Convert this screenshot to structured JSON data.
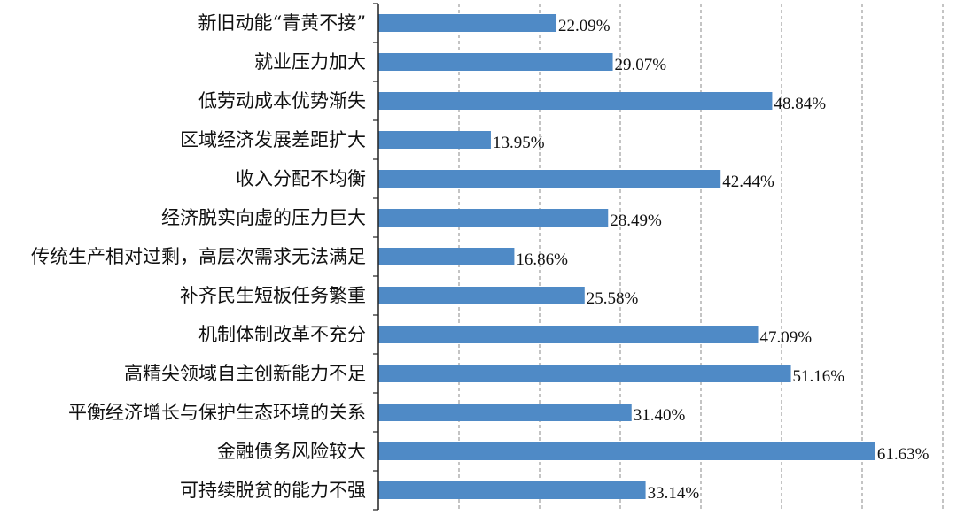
{
  "chart_data": {
    "type": "bar",
    "orientation": "horizontal",
    "categories": [
      "新旧动能“青黄不接”",
      "就业压力加大",
      "低劳动成本优势渐失",
      "区域经济发展差距扩大",
      "收入分配不均衡",
      "经济脱实向虚的压力巨大",
      "传统生产相对过剩，高层次需求无法满足",
      "补齐民生短板任务繁重",
      "机制体制改革不充分",
      "高精尖领域自主创新能力不足",
      "平衡经济增长与保护生态环境的关系",
      "金融债务风险较大",
      "可持续脱贫的能力不强"
    ],
    "values": [
      22.09,
      29.07,
      48.84,
      13.95,
      42.44,
      28.49,
      16.86,
      25.58,
      47.09,
      51.16,
      31.4,
      61.63,
      33.14
    ],
    "value_labels": [
      "22.09%",
      "29.07%",
      "48.84%",
      "13.95%",
      "42.44%",
      "28.49%",
      "16.86%",
      "25.58%",
      "47.09%",
      "51.16%",
      "31.40%",
      "61.63%",
      "33.14%"
    ],
    "xlim": [
      0,
      70
    ],
    "x_gridlines": [
      10,
      20,
      30,
      40,
      50,
      60,
      70
    ],
    "grid": "vertical dashed",
    "bar_color": "#4f8ac6",
    "title": "",
    "xlabel": "",
    "ylabel": ""
  }
}
